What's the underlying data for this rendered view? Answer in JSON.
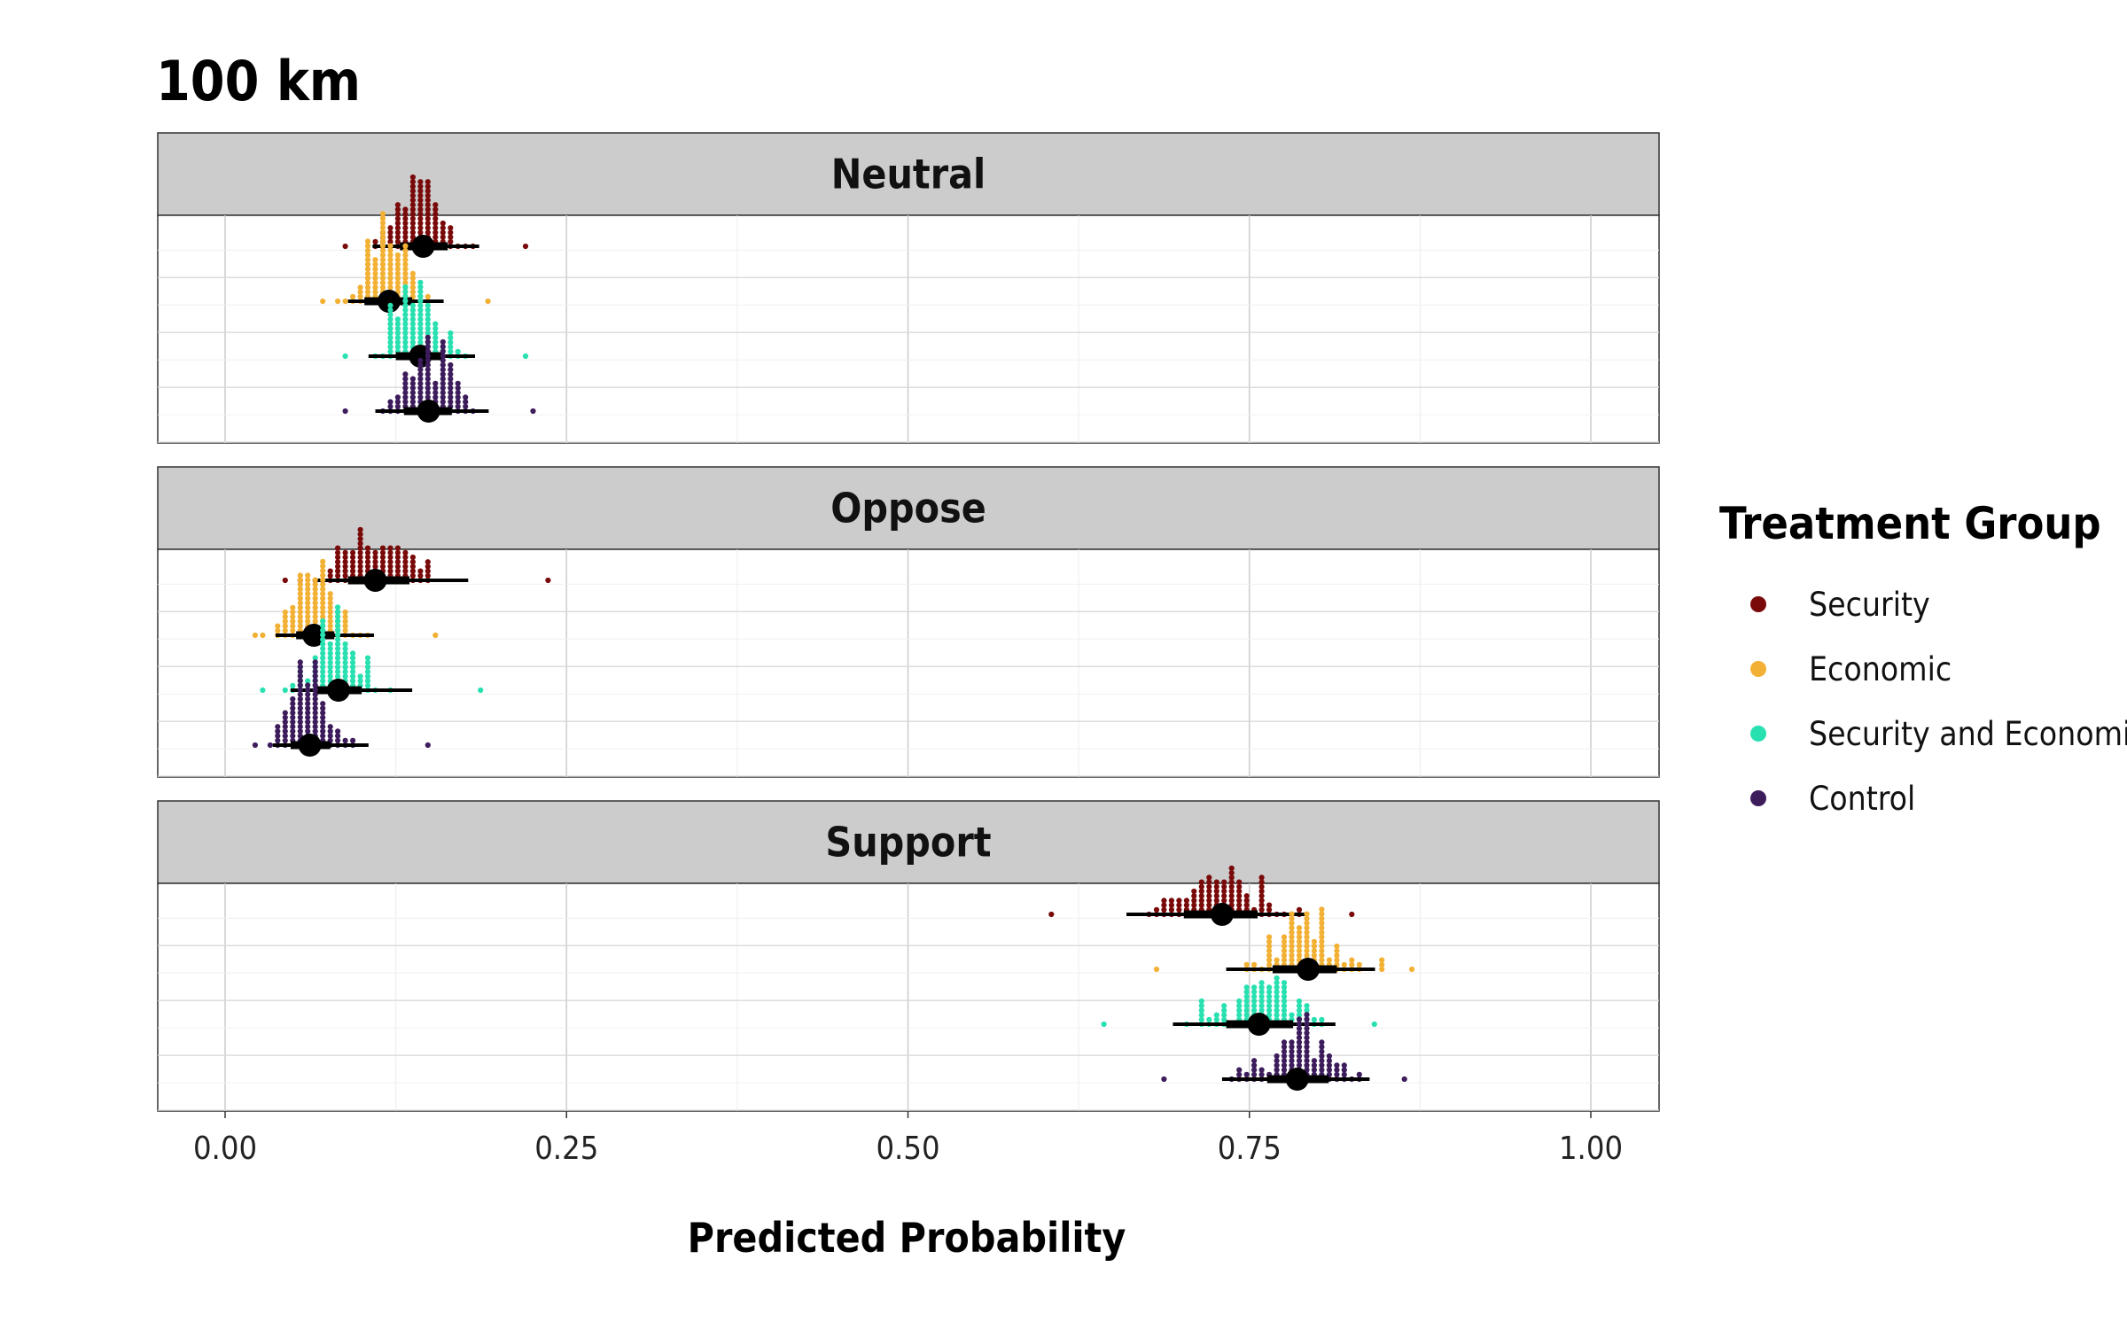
{
  "chart_data": {
    "type": "scatter",
    "title": "100 km",
    "xlabel": "Predicted Probability",
    "ylabel": "",
    "xlim": [
      -0.05,
      1.05
    ],
    "xticks": [
      "0.00",
      "0.25",
      "0.50",
      "0.75",
      "1.00"
    ],
    "xtick_values": [
      0,
      0.25,
      0.5,
      0.75,
      1.0
    ],
    "grid": true,
    "legend_position": "right",
    "legend": {
      "title": "Treatment Group",
      "entries": [
        "Security",
        "Economic",
        "Security and Economic",
        "Control"
      ]
    },
    "colors": {
      "Security": "#7a0a0a",
      "Economic": "#f2b134",
      "Security and Economic": "#28e0b0",
      "Control": "#3d1c5c"
    },
    "facets": [
      {
        "name": "Neutral",
        "groups": [
          {
            "name": "Security",
            "median": 0.145,
            "interval_66": [
              0.128,
              0.163
            ],
            "interval_95": [
              0.108,
              0.186
            ],
            "range": [
              0.087,
              0.221
            ]
          },
          {
            "name": "Economic",
            "median": 0.12,
            "interval_66": [
              0.102,
              0.137
            ],
            "interval_95": [
              0.09,
              0.16
            ],
            "range": [
              0.073,
              0.19
            ]
          },
          {
            "name": "Security and Economic",
            "median": 0.143,
            "interval_66": [
              0.125,
              0.16
            ],
            "interval_95": [
              0.105,
              0.183
            ],
            "range": [
              0.088,
              0.218
            ]
          },
          {
            "name": "Control",
            "median": 0.149,
            "interval_66": [
              0.131,
              0.166
            ],
            "interval_95": [
              0.11,
              0.193
            ],
            "range": [
              0.09,
              0.226
            ]
          }
        ]
      },
      {
        "name": "Oppose",
        "groups": [
          {
            "name": "Security",
            "median": 0.11,
            "interval_66": [
              0.09,
              0.135
            ],
            "interval_95": [
              0.065,
              0.178
            ],
            "range": [
              0.042,
              0.237
            ]
          },
          {
            "name": "Economic",
            "median": 0.065,
            "interval_66": [
              0.052,
              0.08
            ],
            "interval_95": [
              0.037,
              0.109
            ],
            "range": [
              0.023,
              0.153
            ]
          },
          {
            "name": "Security and Economic",
            "median": 0.083,
            "interval_66": [
              0.066,
              0.1
            ],
            "interval_95": [
              0.048,
              0.137
            ],
            "range": [
              0.03,
              0.186
            ]
          },
          {
            "name": "Control",
            "median": 0.062,
            "interval_66": [
              0.048,
              0.077
            ],
            "interval_95": [
              0.035,
              0.105
            ],
            "range": [
              0.022,
              0.151
            ]
          }
        ]
      },
      {
        "name": "Support",
        "groups": [
          {
            "name": "Security",
            "median": 0.73,
            "interval_66": [
              0.702,
              0.756
            ],
            "interval_95": [
              0.66,
              0.792
            ],
            "range": [
              0.607,
              0.823
            ]
          },
          {
            "name": "Economic",
            "median": 0.793,
            "interval_66": [
              0.767,
              0.814
            ],
            "interval_95": [
              0.733,
              0.842
            ],
            "range": [
              0.68,
              0.868
            ]
          },
          {
            "name": "Security and Economic",
            "median": 0.757,
            "interval_66": [
              0.733,
              0.782
            ],
            "interval_95": [
              0.694,
              0.813
            ],
            "range": [
              0.644,
              0.842
            ]
          },
          {
            "name": "Control",
            "median": 0.785,
            "interval_66": [
              0.763,
              0.808
            ],
            "interval_95": [
              0.73,
              0.838
            ],
            "range": [
              0.69,
              0.862
            ]
          }
        ]
      }
    ]
  }
}
